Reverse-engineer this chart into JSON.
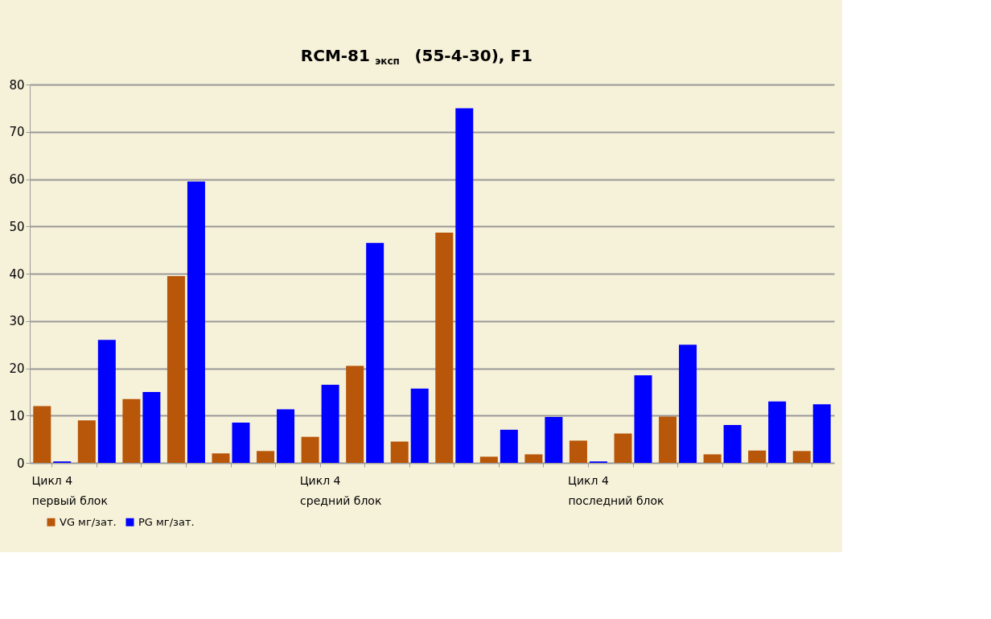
{
  "chart_data": {
    "type": "bar",
    "title": "RCM-81 $_{эксп}$ (55-4-30), F1",
    "categories": [
      "Цикл 4",
      null,
      null,
      null,
      null,
      null,
      "Цикл 4",
      null,
      null,
      null,
      null,
      null,
      "Цикл 4",
      null,
      null,
      null,
      null,
      null
    ],
    "series": [
      {
        "name": "VG мг/зат.",
        "color": "#b8560a",
        "values": [
          12,
          9,
          13.5,
          39.5,
          2,
          2.5,
          5.5,
          20.5,
          4.5,
          48.7,
          1.3,
          1.8,
          4.7,
          6.2,
          9.8,
          1.8,
          2.6,
          2.5
        ]
      },
      {
        "name": "PG мг/зат.",
        "color": "#0000ff",
        "values": [
          0.3,
          26,
          15,
          59.5,
          8.5,
          11.3,
          16.5,
          46.5,
          15.7,
          75,
          7,
          9.7,
          0.3,
          18.5,
          25,
          8,
          13,
          12.4
        ]
      }
    ],
    "annotations": [
      "первый блок",
      "средний блок",
      "последний блок"
    ],
    "ylim": [
      0,
      80
    ],
    "yticks": [
      0,
      10,
      20,
      30,
      40,
      50,
      60,
      70,
      80
    ],
    "grid": "y",
    "legend": "bottom"
  }
}
